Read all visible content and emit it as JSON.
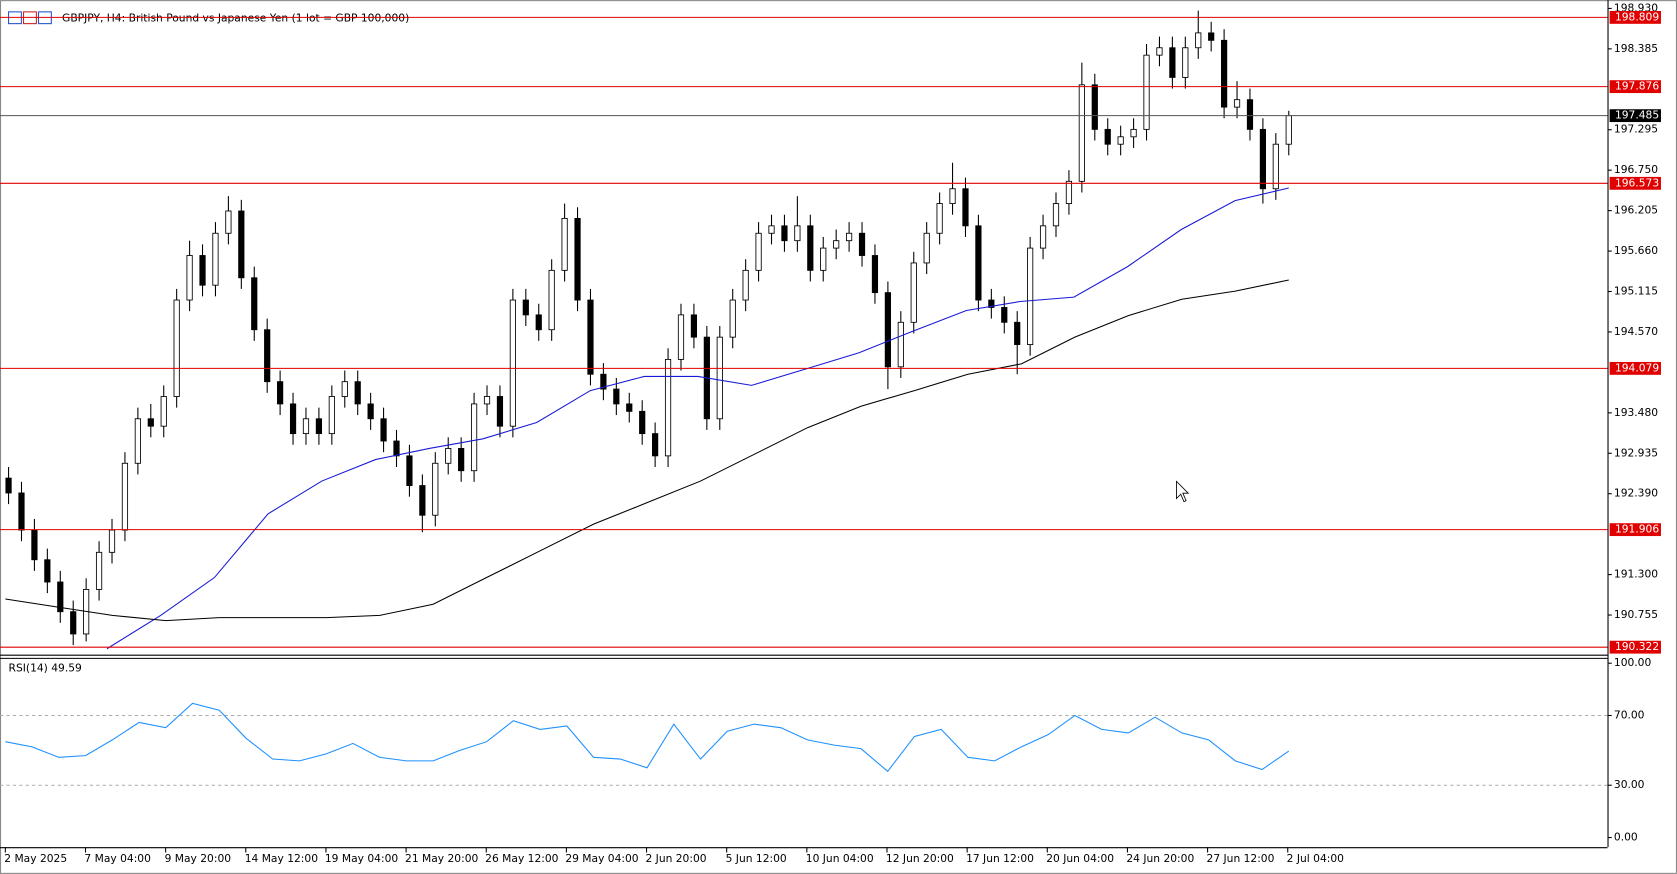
{
  "window": {
    "title": "GBPJPY, H4:  British Pound vs Japanese Yen (1 lot = GBP 100,000)"
  },
  "chart_data": [
    {
      "type": "candlestick",
      "ylim": [
        190.25,
        198.97
      ],
      "yticks": [
        {
          "value": 198.93,
          "label": "198.930"
        },
        198.385,
        197.295,
        {
          "value": 196.75,
          "label": "196.750"
        },
        196.205,
        {
          "value": 195.66,
          "label": "195.660"
        },
        195.115,
        {
          "value": 194.57,
          "label": "194.570"
        },
        {
          "value": 193.48,
          "label": "193.480"
        },
        192.935,
        {
          "value": 192.39,
          "label": "192.390"
        },
        {
          "value": 191.3,
          "label": "191.300"
        },
        190.755
      ],
      "xlabels": [
        "2 May 2025",
        "7 May 04:00",
        "9 May 20:00",
        "14 May 12:00",
        "19 May 04:00",
        "21 May 20:00",
        "26 May 12:00",
        "29 May 04:00",
        "2 Jun 20:00",
        "5 Jun 12:00",
        "10 Jun 04:00",
        "12 Jun 20:00",
        "17 Jun 12:00",
        "20 Jun 04:00",
        "24 Jun 20:00",
        "27 Jun 12:00",
        "2 Jul 04:00"
      ],
      "levels": [
        198.809,
        197.876,
        196.573,
        194.079,
        191.906,
        190.322
      ],
      "level_color": "#e00000",
      "current_price": 197.485,
      "candles": [
        [
          192.6,
          192.75,
          192.25,
          192.4
        ],
        [
          192.4,
          192.55,
          191.75,
          191.9
        ],
        [
          191.9,
          192.05,
          191.35,
          191.5
        ],
        [
          191.5,
          191.65,
          191.05,
          191.2
        ],
        [
          191.2,
          191.35,
          190.65,
          190.8
        ],
        [
          190.8,
          190.95,
          190.35,
          190.5
        ],
        [
          190.5,
          191.25,
          190.4,
          191.1
        ],
        [
          191.1,
          191.75,
          190.95,
          191.6
        ],
        [
          191.6,
          192.05,
          191.45,
          191.9
        ],
        [
          191.9,
          192.95,
          191.75,
          192.8
        ],
        [
          192.8,
          193.55,
          192.65,
          193.4
        ],
        [
          193.4,
          193.6,
          193.15,
          193.3
        ],
        [
          193.3,
          193.85,
          193.15,
          193.7
        ],
        [
          193.7,
          195.15,
          193.55,
          195.0
        ],
        [
          195.0,
          195.8,
          194.85,
          195.6
        ],
        [
          195.6,
          195.75,
          195.05,
          195.2
        ],
        [
          195.2,
          196.05,
          195.05,
          195.9
        ],
        [
          195.9,
          196.4,
          195.75,
          196.2
        ],
        [
          196.2,
          196.35,
          195.15,
          195.3
        ],
        [
          195.3,
          195.45,
          194.45,
          194.6
        ],
        [
          194.6,
          194.75,
          193.75,
          193.9
        ],
        [
          193.9,
          194.05,
          193.45,
          193.6
        ],
        [
          193.6,
          193.75,
          193.05,
          193.2
        ],
        [
          193.2,
          193.55,
          193.05,
          193.4
        ],
        [
          193.4,
          193.55,
          193.05,
          193.2
        ],
        [
          193.2,
          193.85,
          193.05,
          193.7
        ],
        [
          193.7,
          194.05,
          193.55,
          193.9
        ],
        [
          193.9,
          194.05,
          193.45,
          193.6
        ],
        [
          193.6,
          193.75,
          193.25,
          193.4
        ],
        [
          193.4,
          193.55,
          192.95,
          193.1
        ],
        [
          193.1,
          193.25,
          192.75,
          192.9
        ],
        [
          192.9,
          193.05,
          192.35,
          192.5
        ],
        [
          192.5,
          192.65,
          191.87,
          192.1
        ],
        [
          192.1,
          192.95,
          191.95,
          192.8
        ],
        [
          192.8,
          193.15,
          192.65,
          193.0
        ],
        [
          193.0,
          193.15,
          192.55,
          192.7
        ],
        [
          192.7,
          193.75,
          192.55,
          193.6
        ],
        [
          193.6,
          193.85,
          193.45,
          193.7
        ],
        [
          193.7,
          193.85,
          193.15,
          193.3
        ],
        [
          193.3,
          195.15,
          193.15,
          195.0
        ],
        [
          195.0,
          195.15,
          194.65,
          194.8
        ],
        [
          194.8,
          194.95,
          194.45,
          194.6
        ],
        [
          194.6,
          195.55,
          194.45,
          195.4
        ],
        [
          195.4,
          196.3,
          195.25,
          196.1
        ],
        [
          196.1,
          196.25,
          194.85,
          195.0
        ],
        [
          195.0,
          195.15,
          193.85,
          194.0
        ],
        [
          194.0,
          194.15,
          193.65,
          193.8
        ],
        [
          193.8,
          193.95,
          193.45,
          193.6
        ],
        [
          193.6,
          193.75,
          193.35,
          193.5
        ],
        [
          193.5,
          193.65,
          193.05,
          193.2
        ],
        [
          193.2,
          193.35,
          192.75,
          192.9
        ],
        [
          192.9,
          194.35,
          192.75,
          194.2
        ],
        [
          194.2,
          194.95,
          194.05,
          194.8
        ],
        [
          194.8,
          194.95,
          194.35,
          194.5
        ],
        [
          194.5,
          194.65,
          193.25,
          193.4
        ],
        [
          193.4,
          194.65,
          193.25,
          194.5
        ],
        [
          194.5,
          195.15,
          194.35,
          195.0
        ],
        [
          195.0,
          195.55,
          194.85,
          195.4
        ],
        [
          195.4,
          196.05,
          195.25,
          195.9
        ],
        [
          195.9,
          196.15,
          195.75,
          196.0
        ],
        [
          196.0,
          196.15,
          195.65,
          195.8
        ],
        [
          195.8,
          196.4,
          195.65,
          196.0
        ],
        [
          196.0,
          196.15,
          195.25,
          195.4
        ],
        [
          195.4,
          195.85,
          195.25,
          195.7
        ],
        [
          195.7,
          195.95,
          195.55,
          195.8
        ],
        [
          195.8,
          196.05,
          195.65,
          195.9
        ],
        [
          195.9,
          196.05,
          195.45,
          195.6
        ],
        [
          195.6,
          195.75,
          194.95,
          195.1
        ],
        [
          195.1,
          195.25,
          193.8,
          194.1
        ],
        [
          194.1,
          194.85,
          193.95,
          194.7
        ],
        [
          194.7,
          195.65,
          194.55,
          195.5
        ],
        [
          195.5,
          196.05,
          195.35,
          195.9
        ],
        [
          195.9,
          196.45,
          195.75,
          196.3
        ],
        [
          196.3,
          196.85,
          196.15,
          196.5
        ],
        [
          196.5,
          196.65,
          195.85,
          196.0
        ],
        [
          196.0,
          196.15,
          194.85,
          195.0
        ],
        [
          195.0,
          195.15,
          194.75,
          194.9
        ],
        [
          194.9,
          195.05,
          194.55,
          194.7
        ],
        [
          194.7,
          194.85,
          194.0,
          194.4
        ],
        [
          194.4,
          195.85,
          194.25,
          195.7
        ],
        [
          195.7,
          196.15,
          195.55,
          196.0
        ],
        [
          196.0,
          196.45,
          195.85,
          196.3
        ],
        [
          196.3,
          196.75,
          196.15,
          196.6
        ],
        [
          196.6,
          198.2,
          196.45,
          197.9
        ],
        [
          197.9,
          198.05,
          197.15,
          197.3
        ],
        [
          197.3,
          197.45,
          196.95,
          197.1
        ],
        [
          197.1,
          197.35,
          196.95,
          197.2
        ],
        [
          197.2,
          197.45,
          197.05,
          197.3
        ],
        [
          197.3,
          198.45,
          197.15,
          198.3
        ],
        [
          198.3,
          198.55,
          198.15,
          198.4
        ],
        [
          198.4,
          198.55,
          197.85,
          198.0
        ],
        [
          198.0,
          198.55,
          197.85,
          198.4
        ],
        [
          198.4,
          198.9,
          198.25,
          198.6
        ],
        [
          198.6,
          198.75,
          198.35,
          198.5
        ],
        [
          198.5,
          198.65,
          197.45,
          197.6
        ],
        [
          197.6,
          197.95,
          197.45,
          197.7
        ],
        [
          197.7,
          197.85,
          197.15,
          197.3
        ],
        [
          197.3,
          197.45,
          196.3,
          196.5
        ],
        [
          196.5,
          197.25,
          196.35,
          197.1
        ],
        [
          197.1,
          197.55,
          196.95,
          197.485
        ]
      ],
      "series": [
        {
          "color": "#1a1ad6",
          "values": [
            190.3,
            190.75,
            191.26,
            192.12,
            192.56,
            192.85,
            193.0,
            193.13,
            193.35,
            193.78,
            193.97,
            193.97,
            193.85,
            194.07,
            194.29,
            194.58,
            194.86,
            194.98,
            195.04,
            195.45,
            195.95,
            196.34,
            196.51
          ]
        },
        {
          "color": "#000000",
          "values": [
            190.97,
            190.86,
            190.75,
            190.68,
            190.72,
            190.72,
            190.72,
            190.75,
            190.9,
            191.26,
            191.62,
            191.98,
            192.27,
            192.56,
            192.92,
            193.28,
            193.57,
            193.78,
            194.0,
            194.14,
            194.5,
            194.79,
            195.01,
            195.12,
            195.27
          ]
        }
      ]
    },
    {
      "type": "line",
      "title": "RSI(14) 49.59",
      "ylim": [
        0,
        100
      ],
      "yticks": [
        {
          "value": 100,
          "label": "100.00"
        },
        {
          "value": 70,
          "label": "70.00"
        },
        {
          "value": 30,
          "label": "30.00"
        },
        {
          "value": 0,
          "label": "0.00"
        }
      ],
      "color": "#1e90ff",
      "values": [
        55,
        52,
        46,
        47,
        56,
        66,
        63,
        77,
        73,
        57,
        45,
        44,
        48,
        54,
        46,
        44,
        44,
        50,
        55,
        67,
        62,
        64,
        46,
        45,
        40,
        65,
        45,
        61,
        65,
        63,
        56,
        53,
        51,
        38,
        58,
        62,
        46,
        44,
        52,
        59,
        70,
        62,
        60,
        69,
        60,
        56,
        44,
        39,
        49.59
      ]
    }
  ]
}
